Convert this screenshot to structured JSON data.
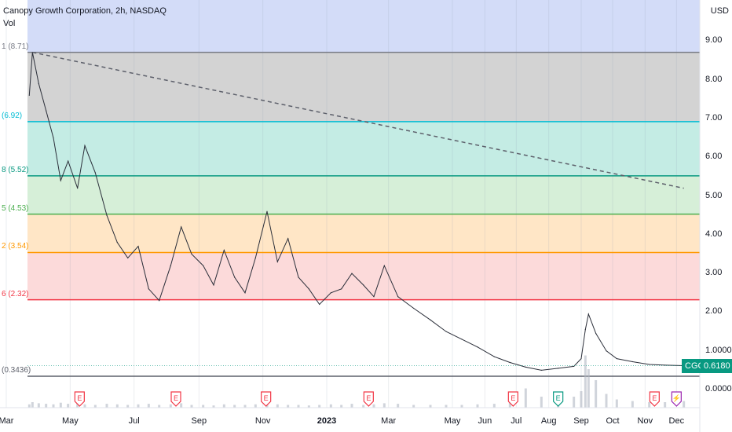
{
  "header": {
    "title": "Canopy Growth Corporation, 2h, NASDAQ",
    "indicator": "Vol"
  },
  "currency": "USD",
  "colors": {
    "bg": "#ffffff",
    "price_line": "#2a2e39",
    "volume": "#b0b7c3"
  },
  "fib_levels": [
    {
      "label": "1 (8.71)",
      "value": 8.71,
      "color": "#787b86",
      "fill": "#d3d3d3"
    },
    {
      "label": "(6.92)",
      "value": 6.92,
      "color": "#00bcd4",
      "fill": "#c8f1f6"
    },
    {
      "label": "8 (5.52)",
      "value": 5.52,
      "color": "#089981",
      "fill": "#c4ece4"
    },
    {
      "label": "5 (4.53)",
      "value": 4.53,
      "color": "#4caf50",
      "fill": "#d6efd8"
    },
    {
      "label": "2 (3.54)",
      "value": 3.54,
      "color": "#ff9800",
      "fill": "#ffe6c6"
    },
    {
      "label": "6 (2.32)",
      "value": 2.32,
      "color": "#f23645",
      "fill": "#fcdada"
    },
    {
      "label": "(0.3436)",
      "value": 0.3436,
      "color": "#5d606b",
      "fill": null
    }
  ],
  "top_fill": "#d3dcf8",
  "y_axis": [
    {
      "label": "9.00",
      "value": 9.0
    },
    {
      "label": "8.00",
      "value": 8.0
    },
    {
      "label": "7.00",
      "value": 7.0
    },
    {
      "label": "6.00",
      "value": 6.0
    },
    {
      "label": "5.00",
      "value": 5.0
    },
    {
      "label": "4.00",
      "value": 4.0
    },
    {
      "label": "3.00",
      "value": 3.0
    },
    {
      "label": "2.00",
      "value": 2.0
    },
    {
      "label": "1.0000",
      "value": 1.0
    },
    {
      "label": "0.0000",
      "value": 0.0
    }
  ],
  "x_axis": [
    {
      "label": "Mar",
      "d": "2022-03-01",
      "bold": false
    },
    {
      "label": "May",
      "d": "2022-05-01",
      "bold": false
    },
    {
      "label": "Jul",
      "d": "2022-07-01",
      "bold": false
    },
    {
      "label": "Sep",
      "d": "2022-09-01",
      "bold": false
    },
    {
      "label": "Nov",
      "d": "2022-11-01",
      "bold": false
    },
    {
      "label": "2023",
      "d": "2023-01-01",
      "bold": true
    },
    {
      "label": "Mar",
      "d": "2023-03-01",
      "bold": false
    },
    {
      "label": "May",
      "d": "2023-05-01",
      "bold": false
    },
    {
      "label": "Jun",
      "d": "2023-06-01",
      "bold": false
    },
    {
      "label": "Jul",
      "d": "2023-07-01",
      "bold": false
    },
    {
      "label": "Aug",
      "d": "2023-08-01",
      "bold": false
    },
    {
      "label": "Sep",
      "d": "2023-09-01",
      "bold": false
    },
    {
      "label": "Oct",
      "d": "2023-10-01",
      "bold": false
    },
    {
      "label": "Nov",
      "d": "2023-11-01",
      "bold": false
    },
    {
      "label": "Dec",
      "d": "2023-12-01",
      "bold": false
    }
  ],
  "price_tag": {
    "symbol": "CGC",
    "value": "0.6180",
    "color": "#089981"
  },
  "trendline": {
    "start": {
      "d": "2022-03-26",
      "y": 8.71
    },
    "end": {
      "d": "2023-12-08",
      "y": 5.2
    }
  },
  "events": [
    {
      "d": "2022-05-10",
      "label": "E",
      "color": "#f23645"
    },
    {
      "d": "2022-08-10",
      "label": "E",
      "color": "#f23645"
    },
    {
      "d": "2022-11-04",
      "label": "E",
      "color": "#f23645"
    },
    {
      "d": "2023-02-10",
      "label": "E",
      "color": "#f23645"
    },
    {
      "d": "2023-06-28",
      "label": "E",
      "color": "#f23645"
    },
    {
      "d": "2023-08-10",
      "label": "E",
      "color": "#089981"
    },
    {
      "d": "2023-11-10",
      "label": "E",
      "color": "#f23645"
    },
    {
      "d": "2023-12-01",
      "label": "⚡",
      "color": "#9c27b0"
    }
  ],
  "chart_data": {
    "type": "line",
    "title": "Canopy Growth Corporation, 2h, NASDAQ",
    "ylabel": "USD",
    "ylim": [
      0,
      9.5
    ],
    "x": [
      "2022-03-23",
      "2022-03-26",
      "2022-04-01",
      "2022-04-08",
      "2022-04-15",
      "2022-04-22",
      "2022-04-29",
      "2022-05-08",
      "2022-05-15",
      "2022-05-25",
      "2022-06-05",
      "2022-06-15",
      "2022-06-25",
      "2022-07-05",
      "2022-07-15",
      "2022-07-25",
      "2022-08-05",
      "2022-08-15",
      "2022-08-25",
      "2022-09-05",
      "2022-09-15",
      "2022-09-25",
      "2022-10-05",
      "2022-10-15",
      "2022-10-25",
      "2022-11-05",
      "2022-11-15",
      "2022-11-25",
      "2022-12-05",
      "2022-12-15",
      "2022-12-25",
      "2023-01-05",
      "2023-01-15",
      "2023-01-25",
      "2023-02-05",
      "2023-02-15",
      "2023-02-25",
      "2023-03-10",
      "2023-03-25",
      "2023-04-10",
      "2023-04-25",
      "2023-05-10",
      "2023-05-25",
      "2023-06-10",
      "2023-06-25",
      "2023-07-10",
      "2023-07-25",
      "2023-08-10",
      "2023-08-25",
      "2023-09-01",
      "2023-09-05",
      "2023-09-08",
      "2023-09-15",
      "2023-09-25",
      "2023-10-05",
      "2023-10-20",
      "2023-11-05",
      "2023-11-20",
      "2023-12-08"
    ],
    "series": [
      {
        "values": [
          7.6,
          8.71,
          7.9,
          7.2,
          6.5,
          5.4,
          5.9,
          5.2,
          6.3,
          5.6,
          4.5,
          3.8,
          3.4,
          3.7,
          2.6,
          2.3,
          3.2,
          4.2,
          3.5,
          3.2,
          2.7,
          3.6,
          2.9,
          2.5,
          3.4,
          4.6,
          3.3,
          3.9,
          2.9,
          2.6,
          2.2,
          2.5,
          2.6,
          3.0,
          2.7,
          2.4,
          3.2,
          2.4,
          2.1,
          1.8,
          1.5,
          1.3,
          1.1,
          0.85,
          0.7,
          0.58,
          0.5,
          0.55,
          0.6,
          0.8,
          1.55,
          1.95,
          1.45,
          1.0,
          0.8,
          0.72,
          0.65,
          0.63,
          0.618
        ]
      }
    ],
    "volume_max": 1.0,
    "volume": [
      0.06,
      0.1,
      0.08,
      0.07,
      0.06,
      0.09,
      0.07,
      0.08,
      0.06,
      0.05,
      0.07,
      0.06,
      0.05,
      0.06,
      0.07,
      0.05,
      0.06,
      0.08,
      0.05,
      0.05,
      0.04,
      0.06,
      0.05,
      0.05,
      0.06,
      0.09,
      0.06,
      0.05,
      0.05,
      0.04,
      0.05,
      0.06,
      0.05,
      0.07,
      0.05,
      0.06,
      0.08,
      0.07,
      0.05,
      0.05,
      0.05,
      0.05,
      0.06,
      0.07,
      0.12,
      0.35,
      0.2,
      0.15,
      0.2,
      0.3,
      0.95,
      0.7,
      0.5,
      0.25,
      0.15,
      0.12,
      0.1,
      0.1,
      0.12
    ]
  }
}
